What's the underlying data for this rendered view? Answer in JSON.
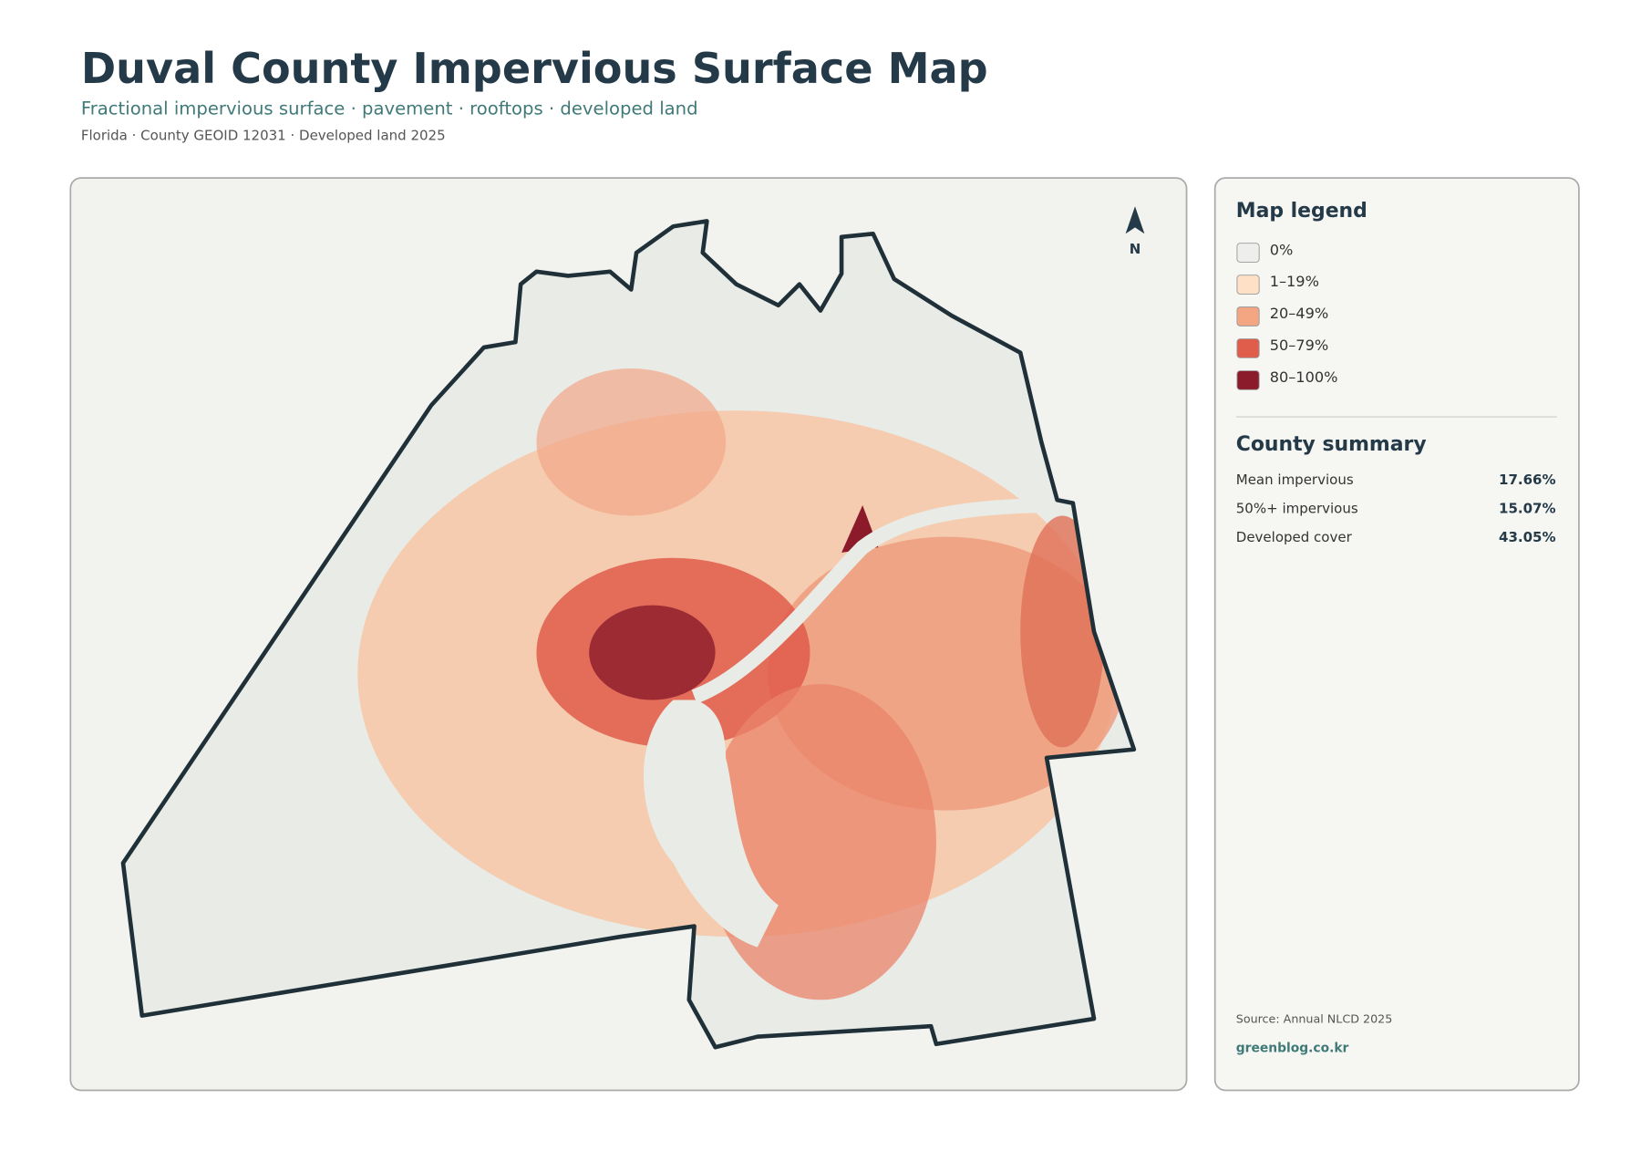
{
  "header": {
    "title": "Duval County Impervious Surface Map",
    "subtitle": "Fractional impervious surface · pavement · rooftops · developed land",
    "meta": "Florida · County GEOID 12031 · Developed land 2025"
  },
  "map": {
    "north_label": "N"
  },
  "legend": {
    "title": "Map legend",
    "items": [
      {
        "label": "0%",
        "color": "#eeeeec"
      },
      {
        "label": "1–19%",
        "color": "#fde0c5"
      },
      {
        "label": "20–49%",
        "color": "#f4a582"
      },
      {
        "label": "50–79%",
        "color": "#e05c4b"
      },
      {
        "label": "80–100%",
        "color": "#8b1a2b"
      }
    ]
  },
  "summary": {
    "title": "County summary",
    "rows": [
      {
        "label": "Mean impervious",
        "value": "17.66%"
      },
      {
        "label": "50%+ impervious",
        "value": "15.07%"
      },
      {
        "label": "Developed cover",
        "value": "43.05%"
      }
    ]
  },
  "footer": {
    "source": "Source: Annual NLCD 2025",
    "site": "greenblog.co.kr"
  }
}
